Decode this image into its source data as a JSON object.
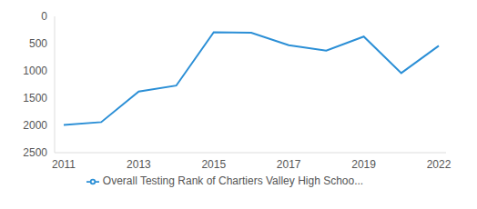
{
  "chart_data": {
    "type": "line",
    "categories": [
      "2011",
      null,
      "2013",
      null,
      "2015",
      null,
      "2017",
      null,
      "2019",
      null,
      "2022"
    ],
    "series": [
      {
        "name": "Overall Testing Rank of Chartiers Valley High Schoo...",
        "color": "#2b8fd6",
        "values": [
          1990,
          1940,
          1380,
          1270,
          290,
          300,
          530,
          630,
          370,
          1040,
          540
        ]
      }
    ],
    "ylim": [
      0,
      2500
    ],
    "yticks": [
      0,
      500,
      1000,
      1500,
      2000,
      2500
    ],
    "grid": false
  }
}
